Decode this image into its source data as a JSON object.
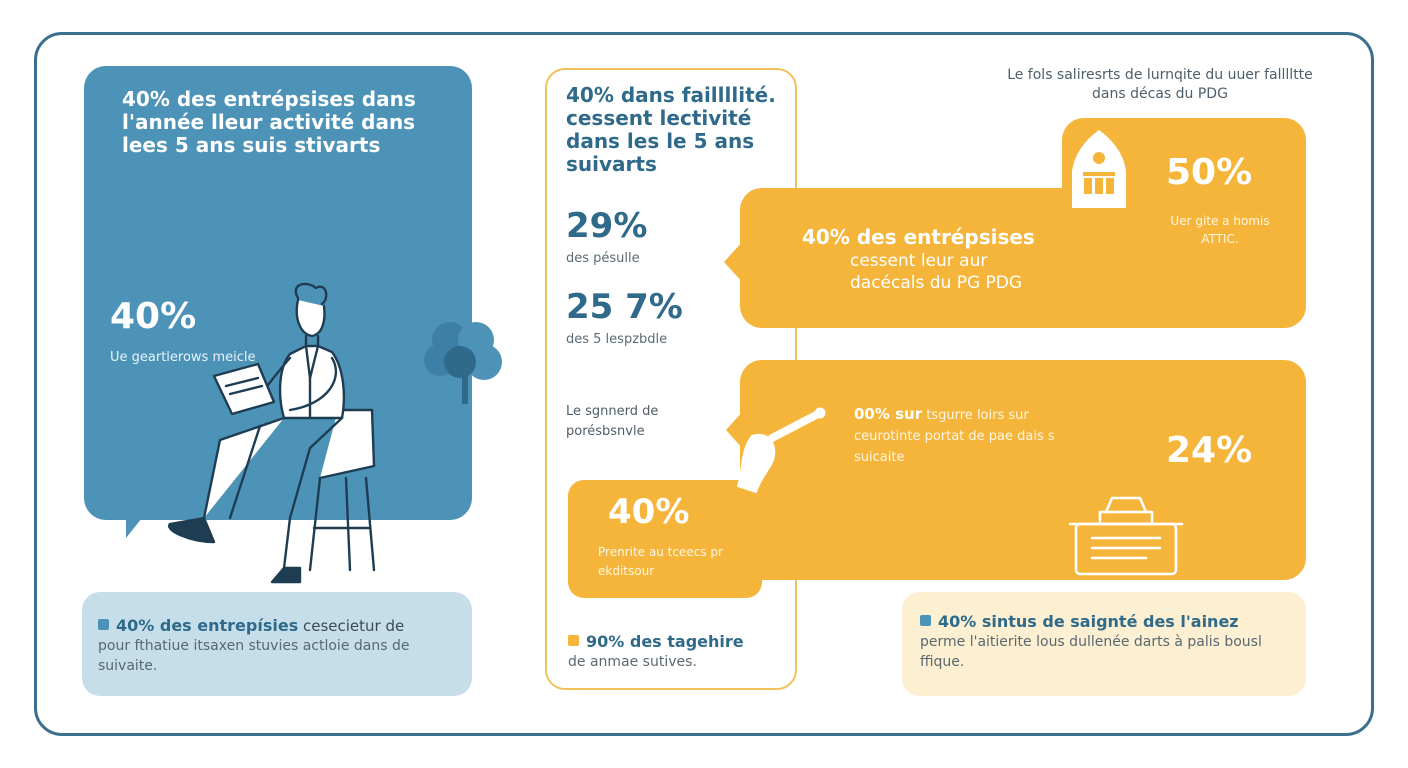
{
  "colors": {
    "frame": "#3b6f8c",
    "blue": "#4d93b8",
    "light_blue": "#c5deea",
    "orange": "#f5b53a",
    "light_orange": "#fdefd2",
    "dark_text": "#2f6a8a"
  },
  "left": {
    "title": "40% des entrépsises dans l'année lleur activité dans lees 5 ans suis stivarts",
    "big_stat": "40%",
    "big_sub": "Ue geartlerows meicle",
    "note_head": "40% des entrepísies",
    "note_head_rest": " cesecietur de",
    "note_body": "pour fthatiue itsaxen stuvies actloie dans de suivaite."
  },
  "middle": {
    "title": "40% dans faillllité. cessent lectivité dans les le 5 ans suivarts",
    "stat1": "29%",
    "stat1_sub": "des pésulle",
    "stat2": "25 7%",
    "stat2_sub": "des 5 lespzbdle",
    "label": "Le sgnnerd de porésbsnvle",
    "box_stat": "40%",
    "box_sub": "Prenrite au tceecs pr ekditsour",
    "note_head": "90% des tagehire",
    "note_body": "de anmae sutives."
  },
  "right": {
    "top_text": "Le fols saliresrts de lurnqite du uuer falllltte dans décas du PDG",
    "main_title": "40% des entrépsises",
    "main_sub": "cessent leur aur dacécals du PG PDG",
    "top_stat": "50%",
    "top_stat_sub": "Uer gite a homis ATTIC.",
    "low_head": "00% sur",
    "low_head_rest": " tsgurre loirs sur ceurotinte portat de pae dais s suicaite",
    "low_stat": "24%",
    "note_head": "40% sintus de saignté des l'ainez",
    "note_body": "perme l'aitierite lous dullenée darts à palis bousl ffique."
  },
  "icons": [
    "person-reading-icon",
    "tree-icon",
    "building-icon",
    "pointing-hand-icon",
    "typewriter-icon"
  ]
}
